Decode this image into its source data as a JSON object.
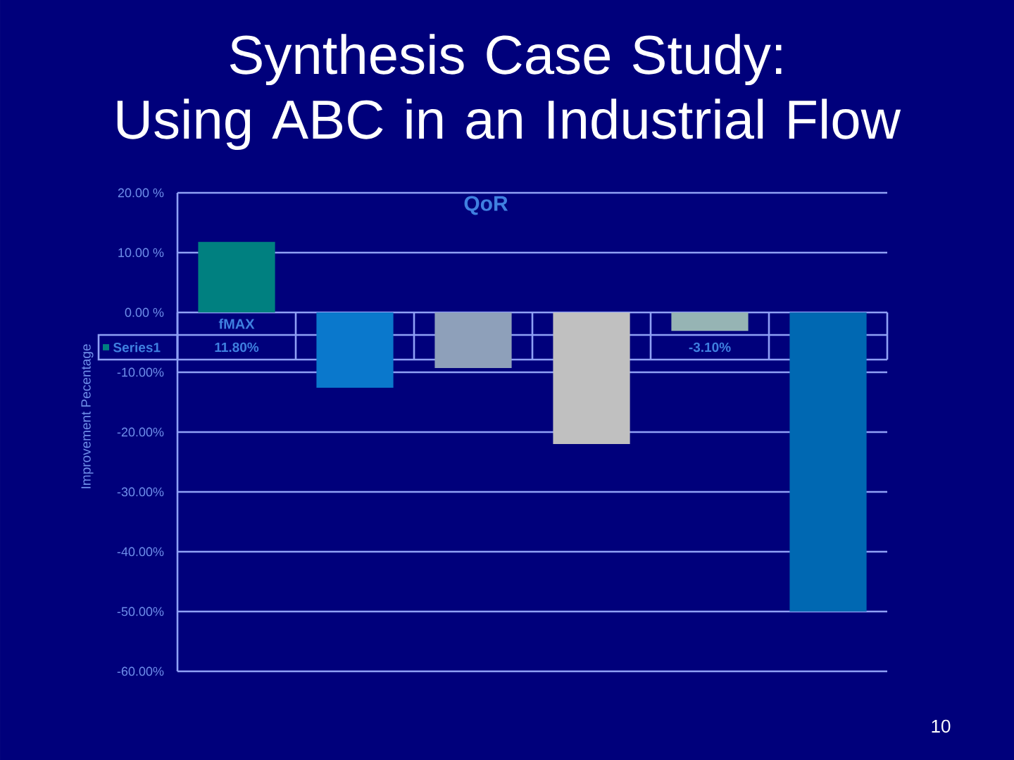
{
  "chart_data": {
    "type": "bar",
    "title": "Synthesis Case Study: Using ABC in an Industrial Flow",
    "subtitle": "QoR",
    "ylabel": "Improvement Pecentage",
    "categories": [
      "fMAX",
      null,
      null,
      null,
      null,
      null
    ],
    "series": [
      {
        "name": "Series1",
        "color": "#008080",
        "colors": [
          "#008080",
          "#0A78CC",
          "#8EA0BA",
          "#C0C0C0",
          "#96B4B4",
          "#0068B2"
        ],
        "values": [
          11.8,
          -12.6,
          -9.3,
          -22,
          -3.1,
          -50
        ],
        "value_labels": [
          "11.80%",
          null,
          null,
          null,
          "-3.10%",
          null
        ]
      }
    ],
    "ylim": [
      -60,
      20
    ],
    "yticks": [
      {
        "value": 20,
        "label": "20.00 %"
      },
      {
        "value": 10,
        "label": "10.00 %"
      },
      {
        "value": 0,
        "label": "0.00 %"
      },
      {
        "value": -10,
        "label": "-10.00%"
      },
      {
        "value": -20,
        "label": "-20.00%"
      },
      {
        "value": -30,
        "label": "-30.00%"
      },
      {
        "value": -40,
        "label": "-40.00%"
      },
      {
        "value": -50,
        "label": "-50.00%"
      },
      {
        "value": -60,
        "label": "-60.00%"
      }
    ],
    "grid": "y",
    "legend": "left",
    "annotations": [
      "10"
    ]
  }
}
